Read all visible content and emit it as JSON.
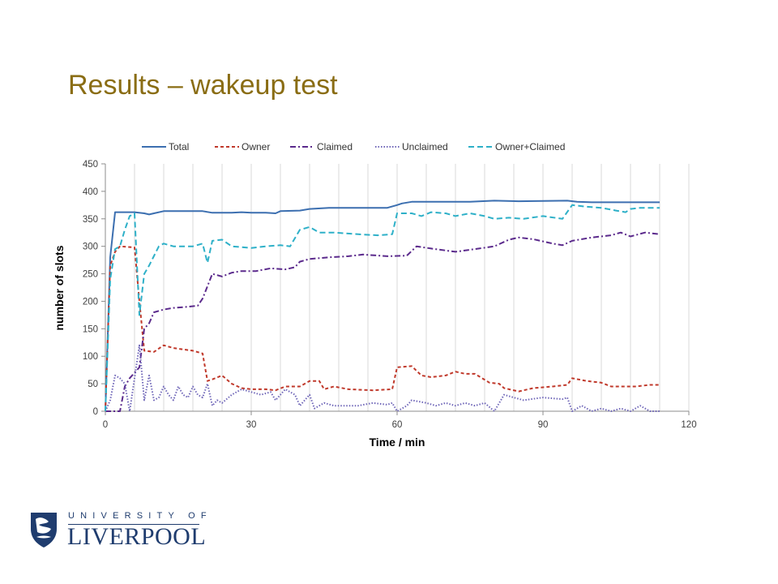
{
  "slide": {
    "title": "Results – wakeup test"
  },
  "logo": {
    "top_text": "UNIVERSITY OF",
    "main_text": "LIVERPOOL"
  },
  "chart_data": {
    "type": "line",
    "title": "",
    "xlabel": "Time / min",
    "ylabel": "number of slots",
    "xlim": [
      0,
      120
    ],
    "ylim": [
      0,
      450
    ],
    "xticks": [
      0,
      30,
      60,
      90,
      120
    ],
    "yticks": [
      0,
      50,
      100,
      150,
      200,
      250,
      300,
      350,
      400,
      450
    ],
    "grid": "vertical",
    "legend_position": "top",
    "series": [
      {
        "name": "Total",
        "color": "#3c6fb0",
        "dash": "solid",
        "points": [
          [
            0,
            0
          ],
          [
            1,
            280
          ],
          [
            2,
            362
          ],
          [
            4,
            362
          ],
          [
            6,
            362
          ],
          [
            8,
            360
          ],
          [
            9,
            358
          ],
          [
            10,
            360
          ],
          [
            12,
            364
          ],
          [
            20,
            364
          ],
          [
            22,
            361
          ],
          [
            26,
            361
          ],
          [
            28,
            362
          ],
          [
            30,
            361
          ],
          [
            33,
            361
          ],
          [
            35,
            360
          ],
          [
            36,
            364
          ],
          [
            40,
            365
          ],
          [
            42,
            368
          ],
          [
            46,
            370
          ],
          [
            58,
            370
          ],
          [
            60,
            375
          ],
          [
            61,
            378
          ],
          [
            63,
            381
          ],
          [
            66,
            381
          ],
          [
            75,
            381
          ],
          [
            80,
            383
          ],
          [
            85,
            382
          ],
          [
            95,
            383
          ],
          [
            97,
            381
          ],
          [
            100,
            380
          ],
          [
            114,
            380
          ]
        ]
      },
      {
        "name": "Owner",
        "color": "#c0392b",
        "dash": "4,3",
        "points": [
          [
            0,
            0
          ],
          [
            1,
            265
          ],
          [
            2,
            290
          ],
          [
            3,
            300
          ],
          [
            6,
            298
          ],
          [
            7,
            200
          ],
          [
            8,
            110
          ],
          [
            10,
            108
          ],
          [
            12,
            120
          ],
          [
            14,
            115
          ],
          [
            18,
            110
          ],
          [
            20,
            105
          ],
          [
            21,
            55
          ],
          [
            22,
            58
          ],
          [
            24,
            65
          ],
          [
            26,
            50
          ],
          [
            28,
            42
          ],
          [
            30,
            40
          ],
          [
            33,
            40
          ],
          [
            35,
            38
          ],
          [
            37,
            45
          ],
          [
            40,
            45
          ],
          [
            42,
            55
          ],
          [
            44,
            55
          ],
          [
            45,
            40
          ],
          [
            47,
            45
          ],
          [
            50,
            40
          ],
          [
            55,
            38
          ],
          [
            59,
            40
          ],
          [
            60,
            80
          ],
          [
            63,
            82
          ],
          [
            65,
            65
          ],
          [
            67,
            62
          ],
          [
            70,
            65
          ],
          [
            72,
            72
          ],
          [
            74,
            68
          ],
          [
            76,
            68
          ],
          [
            79,
            52
          ],
          [
            81,
            50
          ],
          [
            82,
            42
          ],
          [
            85,
            36
          ],
          [
            88,
            42
          ],
          [
            92,
            45
          ],
          [
            95,
            48
          ],
          [
            96,
            60
          ],
          [
            99,
            55
          ],
          [
            102,
            52
          ],
          [
            104,
            45
          ],
          [
            109,
            45
          ],
          [
            112,
            48
          ],
          [
            114,
            48
          ]
        ]
      },
      {
        "name": "Claimed",
        "color": "#5b2a8c",
        "dash": "7,3,2,3",
        "points": [
          [
            0,
            0
          ],
          [
            3,
            0
          ],
          [
            4,
            45
          ],
          [
            5,
            60
          ],
          [
            7,
            80
          ],
          [
            8,
            150
          ],
          [
            9,
            160
          ],
          [
            10,
            180
          ],
          [
            12,
            185
          ],
          [
            14,
            188
          ],
          [
            17,
            190
          ],
          [
            19,
            192
          ],
          [
            20,
            205
          ],
          [
            22,
            250
          ],
          [
            24,
            245
          ],
          [
            26,
            252
          ],
          [
            28,
            255
          ],
          [
            31,
            255
          ],
          [
            34,
            260
          ],
          [
            37,
            258
          ],
          [
            39,
            262
          ],
          [
            40,
            272
          ],
          [
            42,
            277
          ],
          [
            46,
            280
          ],
          [
            50,
            282
          ],
          [
            53,
            285
          ],
          [
            58,
            282
          ],
          [
            62,
            283
          ],
          [
            64,
            300
          ],
          [
            67,
            296
          ],
          [
            72,
            290
          ],
          [
            76,
            295
          ],
          [
            80,
            300
          ],
          [
            83,
            312
          ],
          [
            85,
            316
          ],
          [
            88,
            313
          ],
          [
            92,
            305
          ],
          [
            94,
            302
          ],
          [
            96,
            310
          ],
          [
            100,
            316
          ],
          [
            104,
            320
          ],
          [
            106,
            325
          ],
          [
            108,
            318
          ],
          [
            111,
            325
          ],
          [
            114,
            322
          ]
        ]
      },
      {
        "name": "Unclaimed",
        "color": "#6f66b8",
        "dash": "1.5,2",
        "points": [
          [
            0,
            0
          ],
          [
            1,
            20
          ],
          [
            2,
            65
          ],
          [
            3,
            60
          ],
          [
            4,
            50
          ],
          [
            5,
            0
          ],
          [
            6,
            60
          ],
          [
            7,
            120
          ],
          [
            8,
            20
          ],
          [
            9,
            65
          ],
          [
            10,
            20
          ],
          [
            11,
            25
          ],
          [
            12,
            45
          ],
          [
            13,
            30
          ],
          [
            14,
            20
          ],
          [
            15,
            45
          ],
          [
            16,
            30
          ],
          [
            17,
            25
          ],
          [
            18,
            45
          ],
          [
            19,
            30
          ],
          [
            20,
            25
          ],
          [
            21,
            50
          ],
          [
            22,
            10
          ],
          [
            23,
            20
          ],
          [
            24,
            15
          ],
          [
            26,
            30
          ],
          [
            28,
            40
          ],
          [
            30,
            35
          ],
          [
            32,
            30
          ],
          [
            34,
            35
          ],
          [
            35,
            20
          ],
          [
            37,
            40
          ],
          [
            39,
            30
          ],
          [
            40,
            10
          ],
          [
            42,
            30
          ],
          [
            43,
            5
          ],
          [
            45,
            15
          ],
          [
            47,
            10
          ],
          [
            52,
            10
          ],
          [
            55,
            15
          ],
          [
            58,
            12
          ],
          [
            59,
            15
          ],
          [
            60,
            0
          ],
          [
            62,
            10
          ],
          [
            63,
            20
          ],
          [
            66,
            15
          ],
          [
            68,
            10
          ],
          [
            70,
            15
          ],
          [
            72,
            10
          ],
          [
            74,
            15
          ],
          [
            76,
            10
          ],
          [
            78,
            15
          ],
          [
            80,
            0
          ],
          [
            82,
            30
          ],
          [
            84,
            25
          ],
          [
            86,
            20
          ],
          [
            90,
            25
          ],
          [
            94,
            22
          ],
          [
            95,
            25
          ],
          [
            96,
            0
          ],
          [
            98,
            10
          ],
          [
            100,
            0
          ],
          [
            102,
            5
          ],
          [
            104,
            0
          ],
          [
            106,
            5
          ],
          [
            108,
            0
          ],
          [
            110,
            10
          ],
          [
            112,
            0
          ],
          [
            114,
            0
          ]
        ]
      },
      {
        "name": "Owner+Claimed",
        "color": "#2eb0c8",
        "dash": "7,4",
        "points": [
          [
            0,
            0
          ],
          [
            1,
            240
          ],
          [
            2,
            295
          ],
          [
            3,
            300
          ],
          [
            4,
            330
          ],
          [
            5,
            355
          ],
          [
            6,
            360
          ],
          [
            7,
            175
          ],
          [
            8,
            250
          ],
          [
            9,
            265
          ],
          [
            11,
            300
          ],
          [
            12,
            305
          ],
          [
            14,
            300
          ],
          [
            18,
            300
          ],
          [
            20,
            305
          ],
          [
            21,
            270
          ],
          [
            22,
            310
          ],
          [
            24,
            312
          ],
          [
            26,
            300
          ],
          [
            30,
            297
          ],
          [
            33,
            300
          ],
          [
            36,
            302
          ],
          [
            38,
            300
          ],
          [
            40,
            330
          ],
          [
            42,
            335
          ],
          [
            44,
            325
          ],
          [
            47,
            325
          ],
          [
            52,
            322
          ],
          [
            56,
            320
          ],
          [
            59,
            322
          ],
          [
            60,
            360
          ],
          [
            63,
            360
          ],
          [
            65,
            355
          ],
          [
            67,
            362
          ],
          [
            70,
            360
          ],
          [
            72,
            355
          ],
          [
            75,
            360
          ],
          [
            78,
            355
          ],
          [
            80,
            350
          ],
          [
            83,
            352
          ],
          [
            86,
            350
          ],
          [
            90,
            355
          ],
          [
            94,
            350
          ],
          [
            96,
            375
          ],
          [
            99,
            372
          ],
          [
            102,
            370
          ],
          [
            105,
            365
          ],
          [
            107,
            362
          ],
          [
            108,
            368
          ],
          [
            110,
            370
          ],
          [
            114,
            370
          ]
        ]
      }
    ]
  }
}
